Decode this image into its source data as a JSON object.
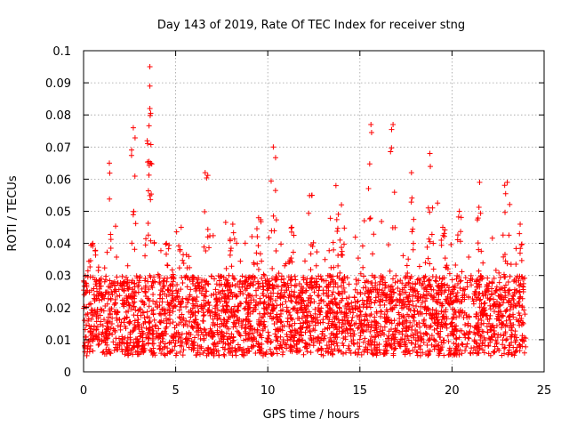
{
  "chart_data": {
    "type": "scatter",
    "title": "Day 143 of 2019, Rate Of TEC Index for receiver stng",
    "xlabel": "GPS time / hours",
    "ylabel": "ROTI / TECUs",
    "xlim": [
      0,
      25
    ],
    "ylim": [
      0,
      0.1
    ],
    "grid": true,
    "marker": "+",
    "color": "#ff0000",
    "x_ticks": [
      "0",
      "5",
      "10",
      "15",
      "20",
      "25"
    ],
    "x_tick_values": [
      0,
      5,
      10,
      15,
      20,
      25
    ],
    "y_ticks": [
      "0",
      "0.01",
      "0.02",
      "0.03",
      "0.04",
      "0.05",
      "0.06",
      "0.07",
      "0.08",
      "0.09",
      "0.1"
    ],
    "y_tick_values": [
      0,
      0.01,
      0.02,
      0.03,
      0.04,
      0.05,
      0.06,
      0.07,
      0.08,
      0.09,
      0.1
    ],
    "data_range": {
      "x_min": 0,
      "x_max": 24,
      "typical_y_min": 0.005,
      "typical_y_max": 0.03
    },
    "peaks": [
      {
        "x": 3.6,
        "y": 0.095
      },
      {
        "x": 3.6,
        "y": 0.089
      },
      {
        "x": 3.6,
        "y": 0.082
      },
      {
        "x": 2.7,
        "y": 0.076
      },
      {
        "x": 15.6,
        "y": 0.077
      },
      {
        "x": 16.8,
        "y": 0.077
      },
      {
        "x": 10.3,
        "y": 0.07
      },
      {
        "x": 18.8,
        "y": 0.068
      },
      {
        "x": 1.4,
        "y": 0.065
      },
      {
        "x": 6.6,
        "y": 0.062
      },
      {
        "x": 17.8,
        "y": 0.062
      },
      {
        "x": 21.5,
        "y": 0.059
      },
      {
        "x": 23.0,
        "y": 0.059
      },
      {
        "x": 13.7,
        "y": 0.058
      },
      {
        "x": 5.3,
        "y": 0.045
      },
      {
        "x": 8.1,
        "y": 0.046
      },
      {
        "x": 9.5,
        "y": 0.048
      },
      {
        "x": 12.4,
        "y": 0.055
      },
      {
        "x": 14.0,
        "y": 0.052
      },
      {
        "x": 20.4,
        "y": 0.05
      },
      {
        "x": 23.7,
        "y": 0.046
      },
      {
        "x": 0.5,
        "y": 0.04
      },
      {
        "x": 4.5,
        "y": 0.04
      },
      {
        "x": 11.3,
        "y": 0.045
      },
      {
        "x": 19.5,
        "y": 0.045
      }
    ]
  }
}
